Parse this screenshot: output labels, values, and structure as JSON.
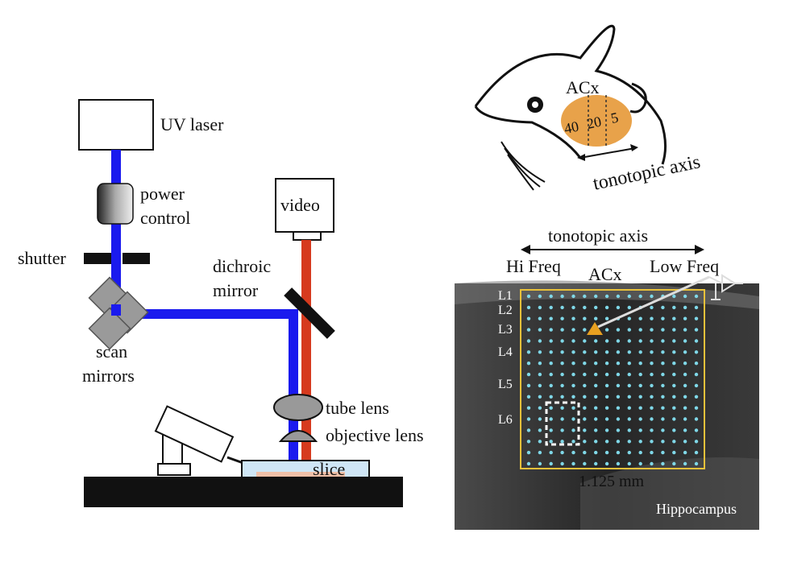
{
  "setup": {
    "uv_laser": "UV laser",
    "power_control_line1": "power",
    "power_control_line2": "control",
    "shutter": "shutter",
    "scan_mirrors_line1": "scan",
    "scan_mirrors_line2": "mirrors",
    "video": "video",
    "dichroic_line1": "dichroic",
    "dichroic_line2": "mirror",
    "tube_lens": "tube lens",
    "objective_lens": "objective lens",
    "slice": "slice"
  },
  "mouse": {
    "acx": "ACx",
    "freq_40": "40",
    "freq_20": "20",
    "freq_5": "5",
    "axis": "tonotopic axis"
  },
  "slice_image": {
    "axis": "tonotopic axis",
    "hi_freq": "Hi Freq",
    "acx": "ACx",
    "low_freq": "Low Freq",
    "layers": [
      "L1",
      "L2",
      "L3",
      "L4",
      "L5",
      "L6"
    ],
    "scale": "1.125 mm",
    "hippocampus": "Hippocampus"
  },
  "colors": {
    "uv_beam": "#1a1aee",
    "video_beam": "#d63a1e",
    "acx_region": "#e8a24a",
    "grid_box": "#e8c13a",
    "grid_dot": "#7fd8e8",
    "stim_marker": "#e8a020"
  }
}
